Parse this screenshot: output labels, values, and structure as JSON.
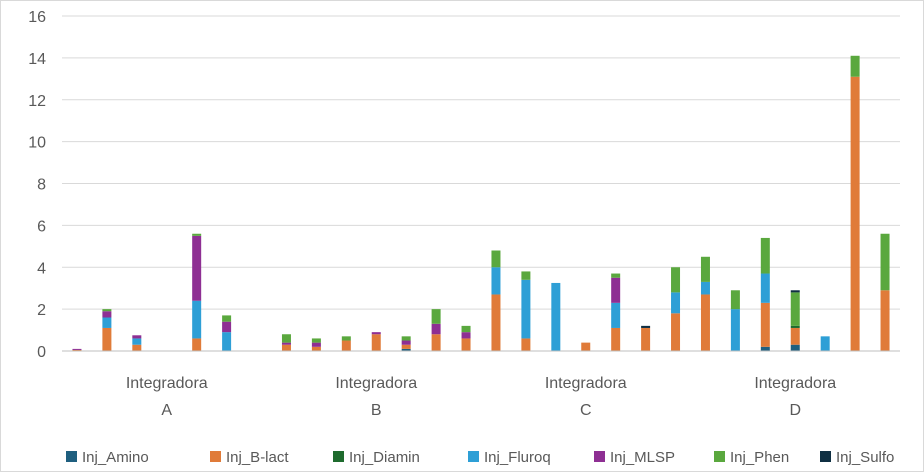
{
  "chart_data": {
    "type": "bar",
    "stacked": true,
    "ylim": [
      0,
      16
    ],
    "yticks": [
      0,
      2,
      4,
      6,
      8,
      10,
      12,
      14,
      16
    ],
    "grid": true,
    "legend_position": "bottom",
    "group_labels": [
      [
        "Integradora",
        "A"
      ],
      [
        "Integradora",
        "B"
      ],
      [
        "Integradora",
        "C"
      ],
      [
        "Integradora",
        "D"
      ]
    ],
    "bars_per_group": 7,
    "series": [
      {
        "name": "Inj_Amino",
        "color": "#1f5f7f",
        "values": [
          0,
          0,
          0,
          0,
          0,
          0,
          0,
          0,
          0,
          0,
          0,
          0.1,
          0,
          0,
          0,
          0,
          0,
          0,
          0,
          0,
          0,
          0,
          0,
          0.2,
          0.3,
          0,
          0,
          0
        ]
      },
      {
        "name": "Inj_B-lact",
        "color": "#e07b39",
        "values": [
          0.05,
          1.1,
          0.3,
          0,
          0.6,
          0,
          0,
          0.3,
          0.2,
          0.5,
          0.8,
          0.2,
          0.8,
          0.6,
          2.7,
          0.6,
          0,
          0.4,
          1.1,
          1.1,
          1.8,
          2.7,
          0,
          2.1,
          0.8,
          0,
          13.1,
          2.9
        ]
      },
      {
        "name": "Inj_Diamin",
        "color": "#1e6b2e",
        "values": [
          0,
          0,
          0,
          0,
          0,
          0,
          0,
          0,
          0,
          0,
          0,
          0,
          0,
          0,
          0,
          0,
          0,
          0,
          0,
          0,
          0,
          0,
          0,
          0,
          0.1,
          0,
          0,
          0
        ]
      },
      {
        "name": "Inj_Fluroq",
        "color": "#2e9fd6",
        "values": [
          0,
          0.5,
          0.3,
          0,
          1.8,
          0.9,
          0,
          0,
          0,
          0,
          0,
          0,
          0,
          0,
          1.3,
          2.8,
          3.25,
          0,
          1.2,
          0,
          1.0,
          0.6,
          2.0,
          1.4,
          0,
          0.7,
          0,
          0
        ]
      },
      {
        "name": "Inj_MLSP",
        "color": "#8e2f93",
        "values": [
          0.05,
          0.3,
          0.15,
          0,
          3.1,
          0.5,
          0,
          0.1,
          0.2,
          0,
          0.1,
          0.2,
          0.5,
          0.3,
          0,
          0,
          0,
          0,
          1.2,
          0,
          0,
          0,
          0,
          0,
          0,
          0,
          0,
          0
        ]
      },
      {
        "name": "Inj_Phen",
        "color": "#5aa83e",
        "values": [
          0,
          0.1,
          0,
          0,
          0.1,
          0.3,
          0,
          0.4,
          0.2,
          0.2,
          0,
          0.2,
          0.7,
          0.3,
          0.8,
          0.4,
          0,
          0,
          0.2,
          0,
          1.2,
          1.2,
          0.9,
          1.7,
          1.6,
          0,
          1.0,
          2.7
        ]
      },
      {
        "name": "Inj_Sulfo",
        "color": "#0f2f42",
        "values": [
          0,
          0,
          0,
          0,
          0,
          0,
          0,
          0,
          0,
          0,
          0,
          0,
          0,
          0,
          0,
          0,
          0,
          0,
          0,
          0.1,
          0,
          0,
          0,
          0,
          0.1,
          0,
          0,
          0
        ]
      }
    ]
  }
}
